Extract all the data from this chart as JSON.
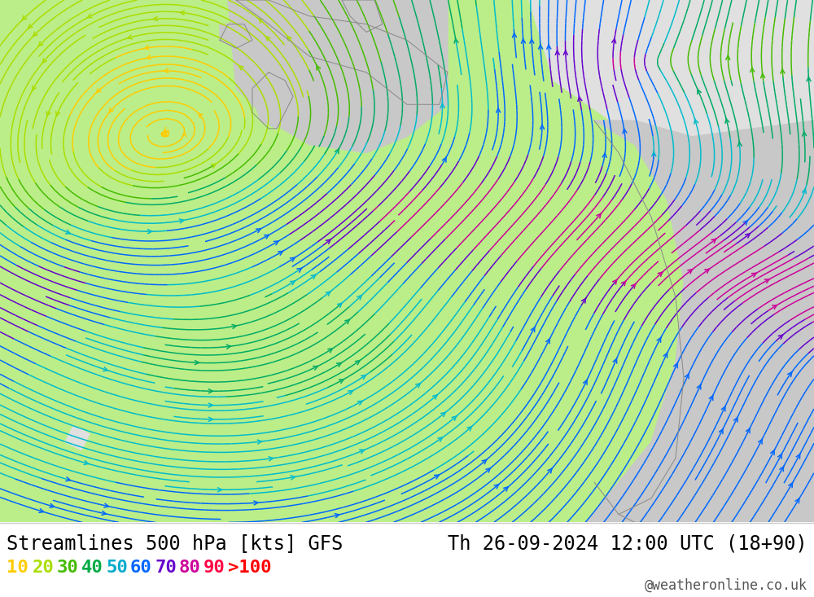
{
  "title_left": "Streamlines 500 hPa [kts] GFS",
  "title_right": "Th 26-09-2024 12:00 UTC (18+90)",
  "credit": "@weatheronline.co.uk",
  "legend_values": [
    "10",
    "20",
    "30",
    "40",
    "50",
    "60",
    "70",
    "80",
    "90",
    ">100"
  ],
  "legend_colors": [
    "#ffcc00",
    "#aadd00",
    "#44bb00",
    "#00aa44",
    "#00aacc",
    "#0066ff",
    "#6600cc",
    "#cc0099",
    "#ff0044",
    "#ff0000"
  ],
  "bg_color": "#ffffff",
  "map_bg_green": "#bbee88",
  "map_bg_gray": "#c8c8c8",
  "map_bg_lightgray": "#e0e0e0",
  "title_fontsize": 17,
  "legend_fontsize": 16,
  "credit_fontsize": 12,
  "fig_width": 10.0,
  "fig_height": 7.33,
  "wind_colors": [
    "#ffcc00",
    "#aadd00",
    "#44bb00",
    "#00aa66",
    "#00bbcc",
    "#0066ff",
    "#6600cc",
    "#cc0099",
    "#ff0044",
    "#ff0000"
  ],
  "wind_boundaries": [
    0,
    15,
    25,
    35,
    45,
    55,
    65,
    75,
    85,
    95,
    200
  ]
}
